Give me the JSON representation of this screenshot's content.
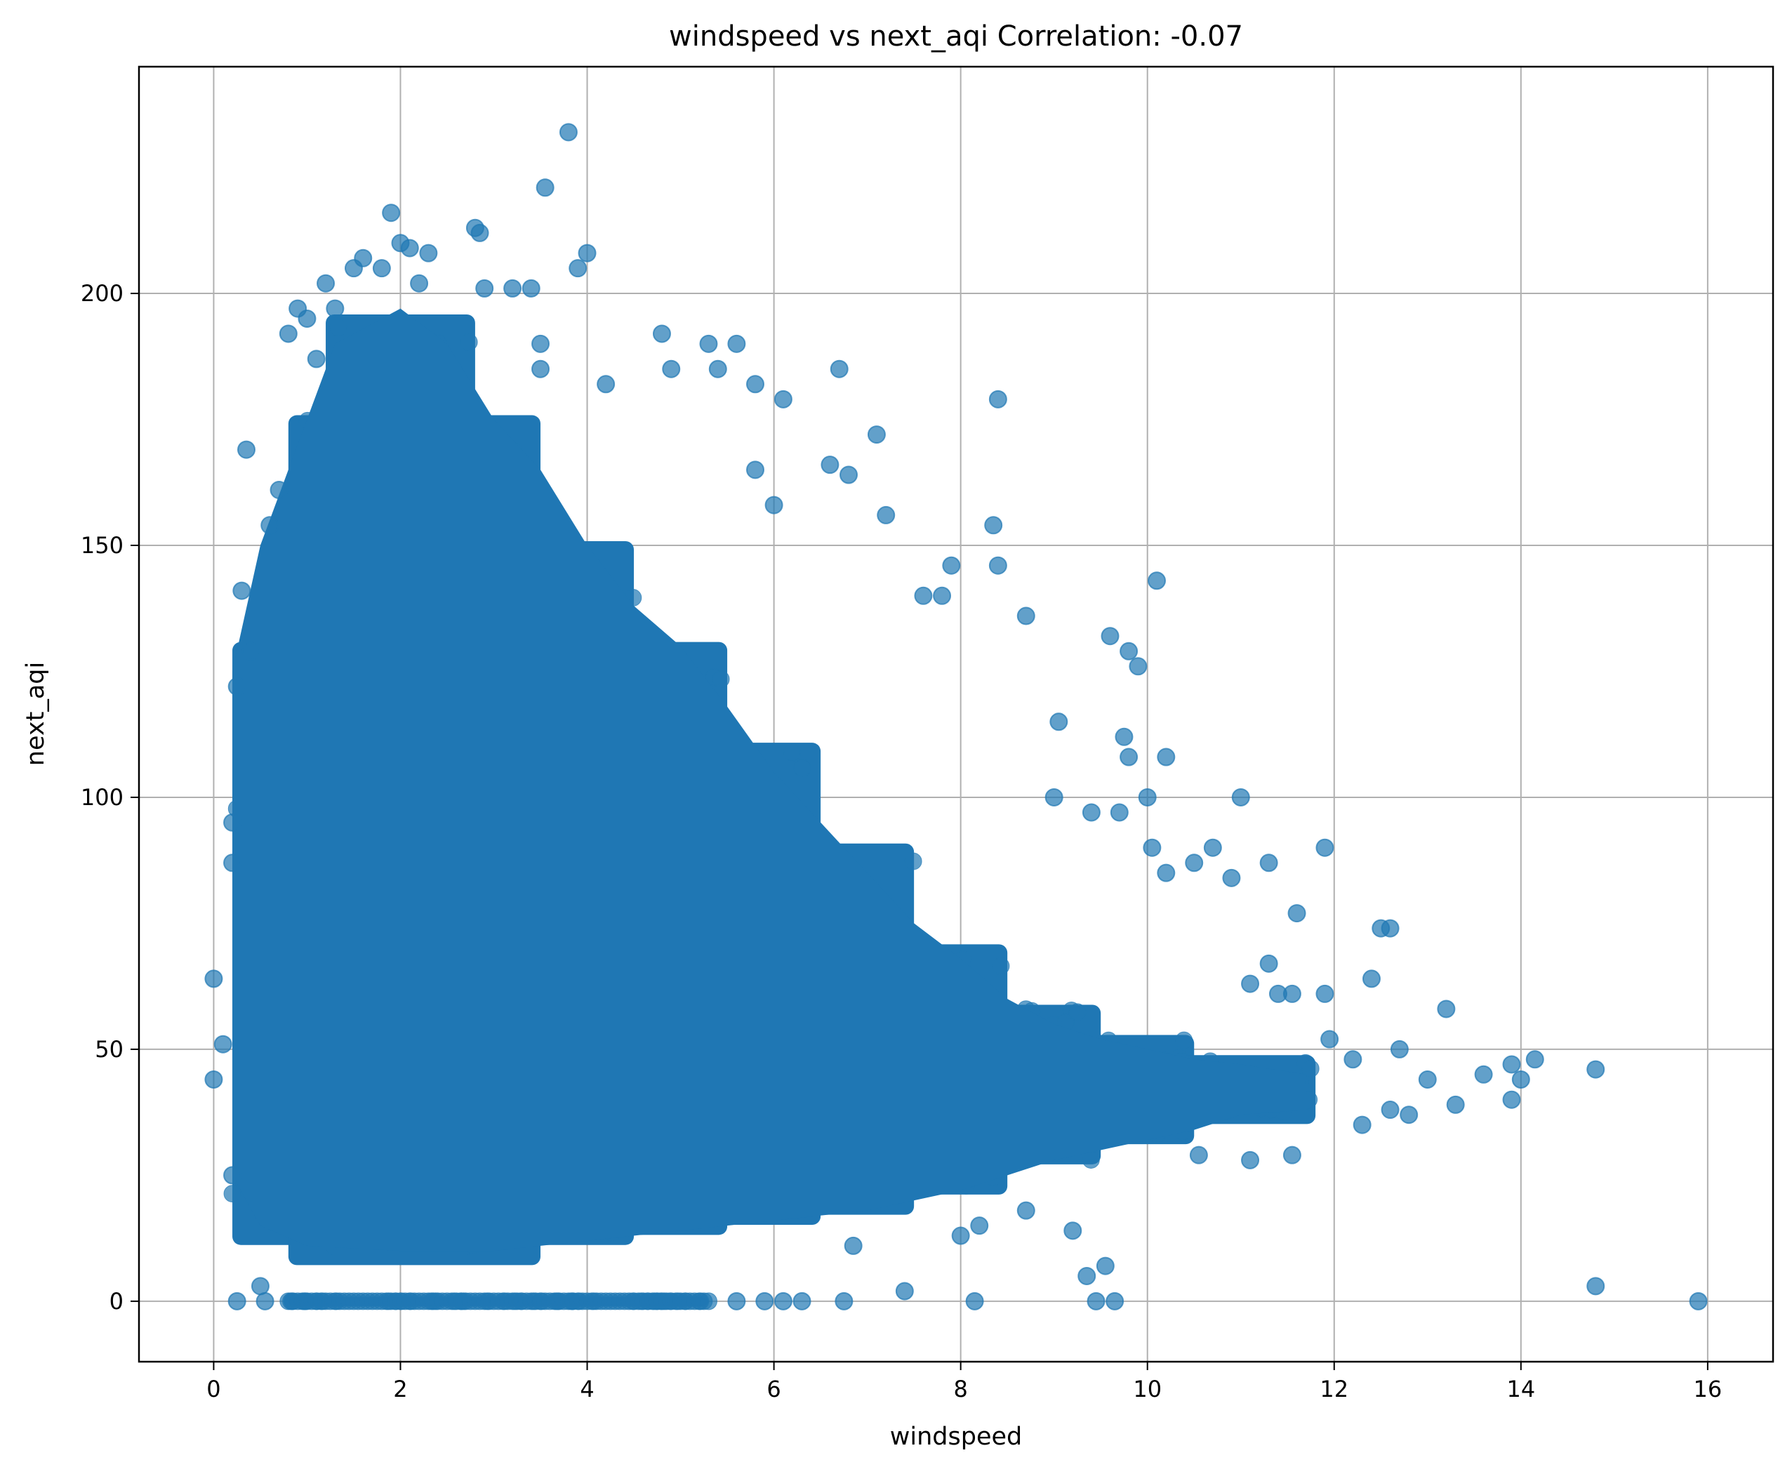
{
  "chart_data": {
    "type": "scatter",
    "title": "windspeed vs next_aqi Correlation: -0.07",
    "xlabel": "windspeed",
    "ylabel": "next_aqi",
    "xlim": [
      -0.8,
      16.7
    ],
    "ylim": [
      -12,
      245
    ],
    "xticks": [
      0,
      2,
      4,
      6,
      8,
      10,
      12,
      14,
      16
    ],
    "yticks": [
      0,
      50,
      100,
      150,
      200
    ],
    "grid": true,
    "marker_color": "#1f77b4",
    "marker_alpha": 0.7,
    "points": [
      [
        0.0,
        64
      ],
      [
        0.0,
        44
      ],
      [
        0.1,
        51
      ],
      [
        0.2,
        95
      ],
      [
        0.2,
        87
      ],
      [
        0.25,
        122
      ],
      [
        0.3,
        141
      ],
      [
        0.35,
        169
      ],
      [
        0.4,
        129
      ],
      [
        0.6,
        154
      ],
      [
        0.7,
        161
      ],
      [
        0.8,
        192
      ],
      [
        0.9,
        197
      ],
      [
        1.0,
        195
      ],
      [
        1.1,
        187
      ],
      [
        1.2,
        202
      ],
      [
        1.3,
        197
      ],
      [
        1.5,
        205
      ],
      [
        1.6,
        207
      ],
      [
        1.8,
        205
      ],
      [
        1.9,
        216
      ],
      [
        2.0,
        210
      ],
      [
        2.1,
        209
      ],
      [
        2.2,
        202
      ],
      [
        2.3,
        208
      ],
      [
        2.8,
        213
      ],
      [
        2.85,
        212
      ],
      [
        2.9,
        201
      ],
      [
        3.2,
        201
      ],
      [
        3.4,
        201
      ],
      [
        3.55,
        221
      ],
      [
        3.8,
        232
      ],
      [
        3.9,
        205
      ],
      [
        4.0,
        208
      ],
      [
        3.5,
        190
      ],
      [
        3.5,
        185
      ],
      [
        4.2,
        182
      ],
      [
        4.8,
        192
      ],
      [
        4.9,
        185
      ],
      [
        5.3,
        190
      ],
      [
        5.4,
        185
      ],
      [
        5.6,
        190
      ],
      [
        5.8,
        182
      ],
      [
        6.1,
        179
      ],
      [
        6.7,
        185
      ],
      [
        7.1,
        172
      ],
      [
        8.4,
        179
      ],
      [
        6.0,
        158
      ],
      [
        6.6,
        166
      ],
      [
        6.8,
        164
      ],
      [
        5.8,
        165
      ],
      [
        7.2,
        156
      ],
      [
        7.6,
        140
      ],
      [
        7.8,
        140
      ],
      [
        7.9,
        146
      ],
      [
        8.35,
        154
      ],
      [
        8.4,
        146
      ],
      [
        8.7,
        136
      ],
      [
        10.1,
        143
      ],
      [
        9.6,
        132
      ],
      [
        9.8,
        129
      ],
      [
        9.9,
        126
      ],
      [
        9.05,
        115
      ],
      [
        9.75,
        112
      ],
      [
        9.8,
        108
      ],
      [
        10.2,
        108
      ],
      [
        9.0,
        100
      ],
      [
        9.4,
        97
      ],
      [
        9.7,
        97
      ],
      [
        10.0,
        100
      ],
      [
        10.05,
        90
      ],
      [
        10.2,
        85
      ],
      [
        10.5,
        87
      ],
      [
        10.7,
        90
      ],
      [
        10.9,
        84
      ],
      [
        11.0,
        100
      ],
      [
        11.3,
        87
      ],
      [
        11.6,
        77
      ],
      [
        11.9,
        90
      ],
      [
        11.3,
        67
      ],
      [
        11.1,
        63
      ],
      [
        11.4,
        61
      ],
      [
        11.55,
        61
      ],
      [
        11.9,
        61
      ],
      [
        11.95,
        52
      ],
      [
        12.2,
        48
      ],
      [
        12.4,
        64
      ],
      [
        12.6,
        74
      ],
      [
        12.5,
        74
      ],
      [
        12.7,
        50
      ],
      [
        13.2,
        58
      ],
      [
        12.3,
        35
      ],
      [
        12.6,
        38
      ],
      [
        12.8,
        37
      ],
      [
        13.0,
        44
      ],
      [
        13.3,
        39
      ],
      [
        13.6,
        45
      ],
      [
        13.9,
        47
      ],
      [
        14.0,
        44
      ],
      [
        14.15,
        48
      ],
      [
        14.8,
        46
      ],
      [
        13.9,
        40
      ],
      [
        11.1,
        28
      ],
      [
        11.55,
        29
      ],
      [
        10.55,
        29
      ],
      [
        9.55,
        7
      ],
      [
        9.45,
        0
      ],
      [
        9.65,
        0
      ],
      [
        9.35,
        5
      ],
      [
        9.2,
        14
      ],
      [
        8.7,
        18
      ],
      [
        8.0,
        13
      ],
      [
        8.2,
        15
      ],
      [
        7.4,
        2
      ],
      [
        8.15,
        0
      ],
      [
        6.85,
        11
      ],
      [
        6.75,
        0
      ],
      [
        6.3,
        0
      ],
      [
        6.1,
        0
      ],
      [
        5.6,
        0
      ],
      [
        5.9,
        0
      ],
      [
        14.8,
        3
      ],
      [
        15.9,
        0
      ],
      [
        0.25,
        0
      ],
      [
        0.5,
        3
      ],
      [
        0.55,
        0
      ],
      [
        0.2,
        25
      ]
    ],
    "dense_regions": [
      {
        "x": [
          0.2,
          1.0
        ],
        "y": [
          12,
          130
        ]
      },
      {
        "x": [
          0.8,
          3.5
        ],
        "y": [
          8,
          175
        ]
      },
      {
        "x": [
          1.2,
          2.8
        ],
        "y": [
          10,
          195
        ]
      },
      {
        "x": [
          3.0,
          4.5
        ],
        "y": [
          12,
          150
        ]
      },
      {
        "x": [
          4.0,
          5.5
        ],
        "y": [
          14,
          130
        ]
      },
      {
        "x": [
          5.0,
          6.5
        ],
        "y": [
          16,
          110
        ]
      },
      {
        "x": [
          6.0,
          7.5
        ],
        "y": [
          18,
          90
        ]
      },
      {
        "x": [
          7.0,
          8.5
        ],
        "y": [
          22,
          70
        ]
      },
      {
        "x": [
          8.0,
          9.5
        ],
        "y": [
          28,
          58
        ]
      },
      {
        "x": [
          9.0,
          10.5
        ],
        "y": [
          32,
          52
        ]
      },
      {
        "x": [
          10.0,
          11.8
        ],
        "y": [
          36,
          48
        ]
      },
      {
        "x": [
          0.8,
          5.3
        ],
        "y": [
          0,
          0
        ]
      }
    ]
  }
}
